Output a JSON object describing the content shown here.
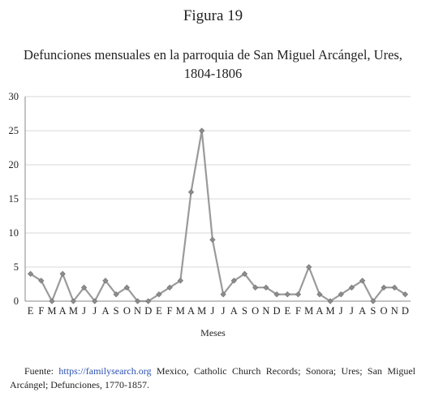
{
  "figure_label": "Figura 19",
  "chart_data": {
    "type": "line",
    "title": [
      "Defunciones mensuales en la parroquia de San Miguel Arcángel, Ures,",
      "1804-1806"
    ],
    "xlabel": "Meses",
    "ylabel": "",
    "ylim": [
      0,
      30
    ],
    "yticks": [
      0,
      5,
      10,
      15,
      20,
      25,
      30
    ],
    "grid": "horizontal",
    "legend": "none",
    "line_color": "#9a9a9a",
    "marker_color": "#8c8c8c",
    "categories": [
      "E",
      "F",
      "M",
      "A",
      "M",
      "J",
      "J",
      "A",
      "S",
      "O",
      "N",
      "D",
      "E",
      "F",
      "M",
      "A",
      "M",
      "J",
      "J",
      "A",
      "S",
      "O",
      "N",
      "D",
      "E",
      "F",
      "M",
      "A",
      "M",
      "J",
      "J",
      "A",
      "S",
      "O",
      "N",
      "D"
    ],
    "values": [
      4,
      3,
      0,
      4,
      0,
      2,
      0,
      3,
      1,
      2,
      0,
      0,
      1,
      2,
      3,
      16,
      25,
      9,
      1,
      3,
      4,
      2,
      2,
      1,
      1,
      1,
      5,
      1,
      0,
      1,
      2,
      3,
      0,
      2,
      2,
      1
    ]
  },
  "source": {
    "prefix": "Fuente: ",
    "link": "https://familysearch.org",
    "rest": " Mexico, Catholic Church Records; Sonora; Ures; San Miguel Arcángel; Defunciones, 1770-1857."
  }
}
